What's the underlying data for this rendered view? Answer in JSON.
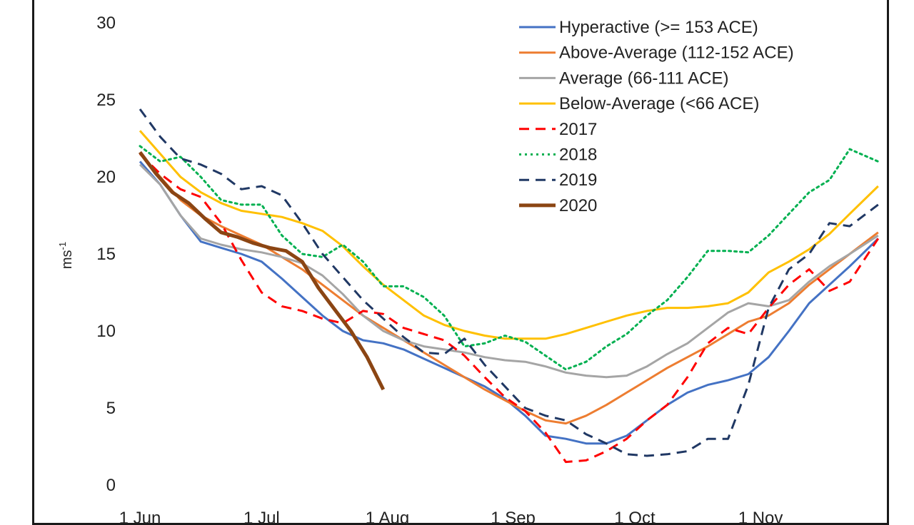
{
  "chart_data": {
    "type": "line",
    "title": "",
    "xlabel": "",
    "ylabel": "ms",
    "ylabel_superscript": "-1",
    "ylim": [
      0,
      30
    ],
    "yticks": [
      0,
      5,
      10,
      15,
      20,
      25,
      30
    ],
    "xlim": [
      "1 Jun",
      "30 Nov"
    ],
    "xtick_labels": [
      "1 Jun",
      "1 Jul",
      "1 Aug",
      "1 Sep",
      "1 Oct",
      "1 Nov"
    ],
    "xtick_days": [
      0,
      30,
      61,
      92,
      122,
      153
    ],
    "x_unit": "days after 1 Jun",
    "grid": false,
    "legend_position": "top-right",
    "series": [
      {
        "name": "Hyperactive (>= 153 ACE)",
        "color": "#4472C4",
        "style": "solid",
        "width": 3,
        "x": [
          0,
          5,
          10,
          15,
          20,
          25,
          30,
          35,
          40,
          45,
          50,
          55,
          60,
          65,
          70,
          75,
          80,
          85,
          90,
          95,
          100,
          105,
          110,
          115,
          120,
          125,
          130,
          135,
          140,
          145,
          150,
          155,
          160,
          165,
          170,
          175,
          182
        ],
        "y": [
          21,
          19.5,
          17.5,
          15.8,
          15.4,
          15,
          14.5,
          13.4,
          12.2,
          11,
          10,
          9.4,
          9.2,
          8.8,
          8.2,
          7.6,
          7,
          6.4,
          5.6,
          4.5,
          3.2,
          3,
          2.7,
          2.7,
          3.2,
          4.2,
          5.2,
          6,
          6.5,
          6.8,
          7.2,
          8.3,
          10,
          11.8,
          13,
          14.2,
          16
        ]
      },
      {
        "name": "Above-Average (112-152 ACE)",
        "color": "#ED7D31",
        "style": "solid",
        "width": 3,
        "x": [
          0,
          5,
          10,
          15,
          20,
          25,
          30,
          35,
          40,
          45,
          50,
          55,
          60,
          65,
          70,
          75,
          80,
          85,
          90,
          95,
          100,
          105,
          110,
          115,
          120,
          125,
          130,
          135,
          140,
          145,
          150,
          155,
          160,
          165,
          170,
          175,
          182
        ],
        "y": [
          21.5,
          20,
          18.5,
          17.5,
          16.8,
          16.2,
          15.6,
          14.8,
          14,
          13,
          12,
          11,
          10.2,
          9.4,
          8.6,
          7.8,
          7,
          6.2,
          5.5,
          4.8,
          4.2,
          4,
          4.5,
          5.2,
          6,
          6.8,
          7.6,
          8.3,
          9,
          9.8,
          10.6,
          11,
          11.8,
          13,
          14,
          15,
          16.4
        ]
      },
      {
        "name": "Average (66-111 ACE)",
        "color": "#A5A5A5",
        "style": "solid",
        "width": 3,
        "x": [
          0,
          5,
          10,
          15,
          20,
          25,
          30,
          35,
          40,
          45,
          50,
          55,
          60,
          65,
          70,
          75,
          80,
          85,
          90,
          95,
          100,
          105,
          110,
          115,
          120,
          125,
          130,
          135,
          140,
          145,
          150,
          155,
          160,
          165,
          170,
          175,
          182
        ],
        "y": [
          20.8,
          19.5,
          17.5,
          16,
          15.6,
          15.3,
          15.1,
          14.8,
          14.4,
          13.6,
          12.4,
          11,
          10,
          9.4,
          9,
          8.8,
          8.6,
          8.3,
          8.1,
          8,
          7.7,
          7.3,
          7.1,
          7,
          7.1,
          7.7,
          8.5,
          9.2,
          10.2,
          11.2,
          11.8,
          11.6,
          12,
          13.2,
          14.2,
          15,
          16.2
        ]
      },
      {
        "name": "Below-Average (<66 ACE)",
        "color": "#FFC000",
        "style": "solid",
        "width": 3,
        "x": [
          0,
          5,
          10,
          15,
          20,
          25,
          30,
          35,
          40,
          45,
          50,
          55,
          60,
          65,
          70,
          75,
          80,
          85,
          90,
          95,
          100,
          105,
          110,
          115,
          120,
          125,
          130,
          135,
          140,
          145,
          150,
          155,
          160,
          165,
          170,
          175,
          182
        ],
        "y": [
          23,
          21.5,
          20,
          19,
          18.3,
          17.8,
          17.6,
          17.4,
          17,
          16.5,
          15.5,
          14.2,
          13,
          12,
          11,
          10.4,
          10,
          9.7,
          9.5,
          9.5,
          9.5,
          9.8,
          10.2,
          10.6,
          11,
          11.3,
          11.5,
          11.5,
          11.6,
          11.8,
          12.5,
          13.8,
          14.5,
          15.3,
          16.3,
          17.6,
          19.4
        ]
      },
      {
        "name": "2017",
        "color": "#FF0000",
        "style": "dashed",
        "width": 3,
        "x": [
          0,
          5,
          10,
          15,
          20,
          25,
          30,
          35,
          40,
          45,
          50,
          55,
          60,
          65,
          70,
          75,
          80,
          85,
          90,
          95,
          100,
          105,
          110,
          115,
          120,
          125,
          130,
          135,
          140,
          145,
          150,
          155,
          160,
          165,
          170,
          175,
          182
        ],
        "y": [
          21.5,
          20.2,
          19.2,
          18.7,
          17,
          14.6,
          12.5,
          11.6,
          11.3,
          10.8,
          10.5,
          11.3,
          11.1,
          10.2,
          9.8,
          9.4,
          8.4,
          7,
          5.7,
          4.8,
          3.4,
          1.5,
          1.6,
          2.2,
          3,
          4.2,
          5.2,
          7,
          9.2,
          10.2,
          9.8,
          11.5,
          13,
          14,
          12.6,
          13.2,
          16
        ]
      },
      {
        "name": "2018",
        "color": "#00B050",
        "style": "dotted",
        "width": 3,
        "x": [
          0,
          5,
          10,
          15,
          20,
          25,
          30,
          35,
          40,
          45,
          50,
          55,
          60,
          65,
          70,
          75,
          80,
          85,
          90,
          95,
          100,
          105,
          110,
          115,
          120,
          125,
          130,
          135,
          140,
          145,
          150,
          155,
          160,
          165,
          170,
          175,
          182
        ],
        "y": [
          22,
          21,
          21.3,
          20,
          18.5,
          18.2,
          18.2,
          16.2,
          15,
          14.8,
          15.6,
          14.5,
          12.9,
          12.9,
          12.2,
          11,
          9,
          9.2,
          9.7,
          9.3,
          8.4,
          7.5,
          8,
          9,
          9.8,
          11,
          12,
          13.5,
          15.2,
          15.2,
          15.1,
          16.2,
          17.6,
          19,
          19.8,
          21.8,
          21
        ]
      },
      {
        "name": "2019",
        "color": "#203864",
        "style": "dashed",
        "width": 3,
        "x": [
          0,
          5,
          10,
          15,
          20,
          25,
          30,
          35,
          40,
          45,
          50,
          55,
          60,
          65,
          70,
          75,
          80,
          85,
          90,
          95,
          100,
          105,
          110,
          115,
          120,
          125,
          130,
          135,
          140,
          145,
          150,
          155,
          160,
          165,
          170,
          175,
          182
        ],
        "y": [
          24.4,
          22.6,
          21.2,
          20.8,
          20.2,
          19.2,
          19.4,
          18.8,
          17,
          15,
          13.5,
          12,
          10.8,
          9.6,
          8.6,
          8.5,
          9.5,
          7.8,
          6.4,
          5,
          4.5,
          4.2,
          3.3,
          2.7,
          2,
          1.9,
          2,
          2.2,
          3,
          3,
          6.5,
          11.5,
          14,
          15,
          17,
          16.8,
          18.2
        ]
      },
      {
        "name": "2020",
        "color": "#8B4513",
        "style": "solid",
        "width": 5,
        "x": [
          0,
          4,
          8,
          12,
          16,
          20,
          24,
          28,
          32,
          36,
          40,
          44,
          48,
          52,
          56,
          60
        ],
        "y": [
          21.6,
          20.2,
          19,
          18.3,
          17.3,
          16.4,
          16.1,
          15.7,
          15.4,
          15.2,
          14.5,
          12.8,
          11.4,
          10,
          8.3,
          6.2
        ]
      }
    ]
  }
}
